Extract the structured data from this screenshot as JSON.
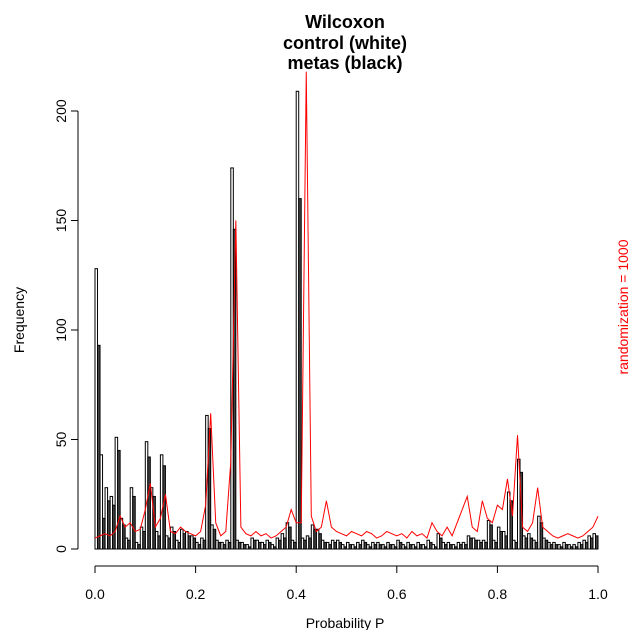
{
  "chart_data": {
    "type": "bar",
    "title_lines": [
      "Wilcoxon",
      "control (white)",
      "metas (black)"
    ],
    "xlabel": "Probability P",
    "ylabel": "Frequency",
    "side_label": "randomization = 1000",
    "xlim": [
      0,
      1
    ],
    "ylim": [
      0,
      210
    ],
    "x_ticks": [
      0.0,
      0.2,
      0.4,
      0.6,
      0.8,
      1.0
    ],
    "x_tick_labels": [
      "0.0",
      "0.2",
      "0.4",
      "0.6",
      "0.8",
      "1.0"
    ],
    "y_ticks": [
      0,
      50,
      100,
      150,
      200
    ],
    "y_tick_labels": [
      "0",
      "50",
      "100",
      "150",
      "200"
    ],
    "bin_width": 0.005,
    "grid": false,
    "colors": {
      "control": "#ffffff",
      "metas": "#444444",
      "line": "#ff0000",
      "outline": "#000000"
    },
    "series": [
      {
        "name": "control (white)",
        "bin_starts": [
          0.0,
          0.01,
          0.02,
          0.03,
          0.04,
          0.05,
          0.06,
          0.07,
          0.08,
          0.09,
          0.1,
          0.11,
          0.12,
          0.13,
          0.14,
          0.15,
          0.16,
          0.17,
          0.18,
          0.19,
          0.2,
          0.21,
          0.22,
          0.23,
          0.24,
          0.25,
          0.26,
          0.27,
          0.28,
          0.29,
          0.3,
          0.31,
          0.32,
          0.33,
          0.34,
          0.35,
          0.36,
          0.37,
          0.38,
          0.39,
          0.4,
          0.41,
          0.42,
          0.43,
          0.44,
          0.45,
          0.46,
          0.47,
          0.48,
          0.49,
          0.5,
          0.51,
          0.52,
          0.53,
          0.54,
          0.55,
          0.56,
          0.57,
          0.58,
          0.59,
          0.6,
          0.61,
          0.62,
          0.63,
          0.64,
          0.65,
          0.66,
          0.67,
          0.68,
          0.69,
          0.7,
          0.71,
          0.72,
          0.73,
          0.74,
          0.75,
          0.76,
          0.77,
          0.78,
          0.79,
          0.8,
          0.81,
          0.82,
          0.83,
          0.84,
          0.85,
          0.86,
          0.87,
          0.88,
          0.89,
          0.9,
          0.91,
          0.92,
          0.93,
          0.94,
          0.95,
          0.96,
          0.97,
          0.98,
          0.99
        ],
        "values": [
          128,
          43,
          28,
          24,
          51,
          14,
          5,
          28,
          3,
          10,
          49,
          28,
          8,
          43,
          6,
          10,
          4,
          9,
          8,
          6,
          3,
          5,
          61,
          11,
          4,
          3,
          4,
          174,
          4,
          3,
          2,
          5,
          4,
          3,
          4,
          2,
          5,
          7,
          12,
          4,
          209,
          5,
          6,
          11,
          9,
          4,
          3,
          4,
          4,
          2,
          3,
          2,
          3,
          4,
          2,
          3,
          3,
          2,
          3,
          2,
          4,
          2,
          3,
          2,
          3,
          2,
          4,
          2,
          7,
          3,
          3,
          2,
          3,
          3,
          6,
          5,
          4,
          4,
          13,
          4,
          10,
          8,
          26,
          4,
          41,
          6,
          7,
          4,
          15,
          5,
          3,
          3,
          2,
          3,
          2,
          2,
          3,
          4,
          6,
          7
        ]
      },
      {
        "name": "metas (black)",
        "bin_starts": [
          0.0,
          0.01,
          0.02,
          0.03,
          0.04,
          0.05,
          0.06,
          0.07,
          0.08,
          0.09,
          0.1,
          0.11,
          0.12,
          0.13,
          0.14,
          0.15,
          0.16,
          0.17,
          0.18,
          0.19,
          0.2,
          0.21,
          0.22,
          0.23,
          0.24,
          0.25,
          0.26,
          0.27,
          0.28,
          0.29,
          0.3,
          0.31,
          0.32,
          0.33,
          0.34,
          0.35,
          0.36,
          0.37,
          0.38,
          0.39,
          0.4,
          0.41,
          0.42,
          0.43,
          0.44,
          0.45,
          0.46,
          0.47,
          0.48,
          0.49,
          0.5,
          0.51,
          0.52,
          0.53,
          0.54,
          0.55,
          0.56,
          0.57,
          0.58,
          0.59,
          0.6,
          0.61,
          0.62,
          0.63,
          0.64,
          0.65,
          0.66,
          0.67,
          0.68,
          0.69,
          0.7,
          0.71,
          0.72,
          0.73,
          0.74,
          0.75,
          0.76,
          0.77,
          0.78,
          0.79,
          0.8,
          0.81,
          0.82,
          0.83,
          0.84,
          0.85,
          0.86,
          0.87,
          0.88,
          0.89,
          0.9,
          0.91,
          0.92,
          0.93,
          0.94,
          0.95,
          0.96,
          0.97,
          0.98,
          0.99
        ],
        "values": [
          93,
          14,
          22,
          20,
          45,
          11,
          4,
          24,
          2,
          8,
          42,
          24,
          6,
          38,
          5,
          8,
          3,
          7,
          6,
          5,
          2,
          4,
          55,
          9,
          3,
          2,
          3,
          146,
          3,
          2,
          1,
          4,
          3,
          2,
          3,
          1,
          4,
          5,
          10,
          3,
          160,
          4,
          5,
          9,
          7,
          3,
          2,
          3,
          3,
          1,
          2,
          1,
          2,
          3,
          1,
          2,
          2,
          1,
          2,
          1,
          3,
          1,
          2,
          1,
          2,
          1,
          3,
          1,
          5,
          2,
          2,
          1,
          2,
          2,
          5,
          4,
          3,
          3,
          11,
          3,
          8,
          6,
          22,
          3,
          35,
          5,
          5,
          3,
          12,
          4,
          2,
          2,
          1,
          2,
          1,
          1,
          2,
          3,
          5,
          6
        ]
      },
      {
        "name": "",
        "type": "line",
        "x": [
          0.0,
          0.01,
          0.02,
          0.03,
          0.04,
          0.05,
          0.06,
          0.07,
          0.08,
          0.09,
          0.1,
          0.11,
          0.12,
          0.13,
          0.14,
          0.15,
          0.16,
          0.17,
          0.18,
          0.19,
          0.2,
          0.21,
          0.22,
          0.23,
          0.24,
          0.25,
          0.26,
          0.27,
          0.28,
          0.29,
          0.3,
          0.31,
          0.32,
          0.33,
          0.34,
          0.35,
          0.36,
          0.37,
          0.38,
          0.39,
          0.4,
          0.41,
          0.42,
          0.43,
          0.44,
          0.45,
          0.46,
          0.47,
          0.48,
          0.49,
          0.5,
          0.51,
          0.52,
          0.53,
          0.54,
          0.55,
          0.56,
          0.57,
          0.58,
          0.59,
          0.6,
          0.61,
          0.62,
          0.63,
          0.64,
          0.65,
          0.66,
          0.67,
          0.68,
          0.69,
          0.7,
          0.71,
          0.72,
          0.73,
          0.74,
          0.75,
          0.76,
          0.77,
          0.78,
          0.79,
          0.8,
          0.81,
          0.82,
          0.83,
          0.84,
          0.85,
          0.86,
          0.87,
          0.88,
          0.89,
          0.9,
          0.91,
          0.92,
          0.93,
          0.94,
          0.95,
          0.96,
          0.97,
          0.98,
          0.99,
          1.0
        ],
        "y": [
          5,
          6,
          7,
          6,
          8,
          15,
          10,
          12,
          8,
          9,
          18,
          30,
          10,
          14,
          25,
          8,
          7,
          10,
          8,
          7,
          6,
          8,
          20,
          62,
          12,
          6,
          8,
          40,
          150,
          10,
          7,
          6,
          8,
          6,
          7,
          5,
          6,
          8,
          10,
          18,
          12,
          12,
          218,
          15,
          8,
          10,
          22,
          10,
          8,
          7,
          6,
          8,
          7,
          6,
          8,
          7,
          5,
          6,
          8,
          7,
          6,
          7,
          5,
          8,
          6,
          7,
          5,
          12,
          8,
          6,
          10,
          6,
          12,
          18,
          24,
          10,
          8,
          22,
          14,
          12,
          20,
          18,
          32,
          15,
          52,
          10,
          8,
          12,
          28,
          10,
          8,
          6,
          5,
          6,
          7,
          6,
          5,
          6,
          8,
          10,
          15
        ]
      }
    ]
  }
}
